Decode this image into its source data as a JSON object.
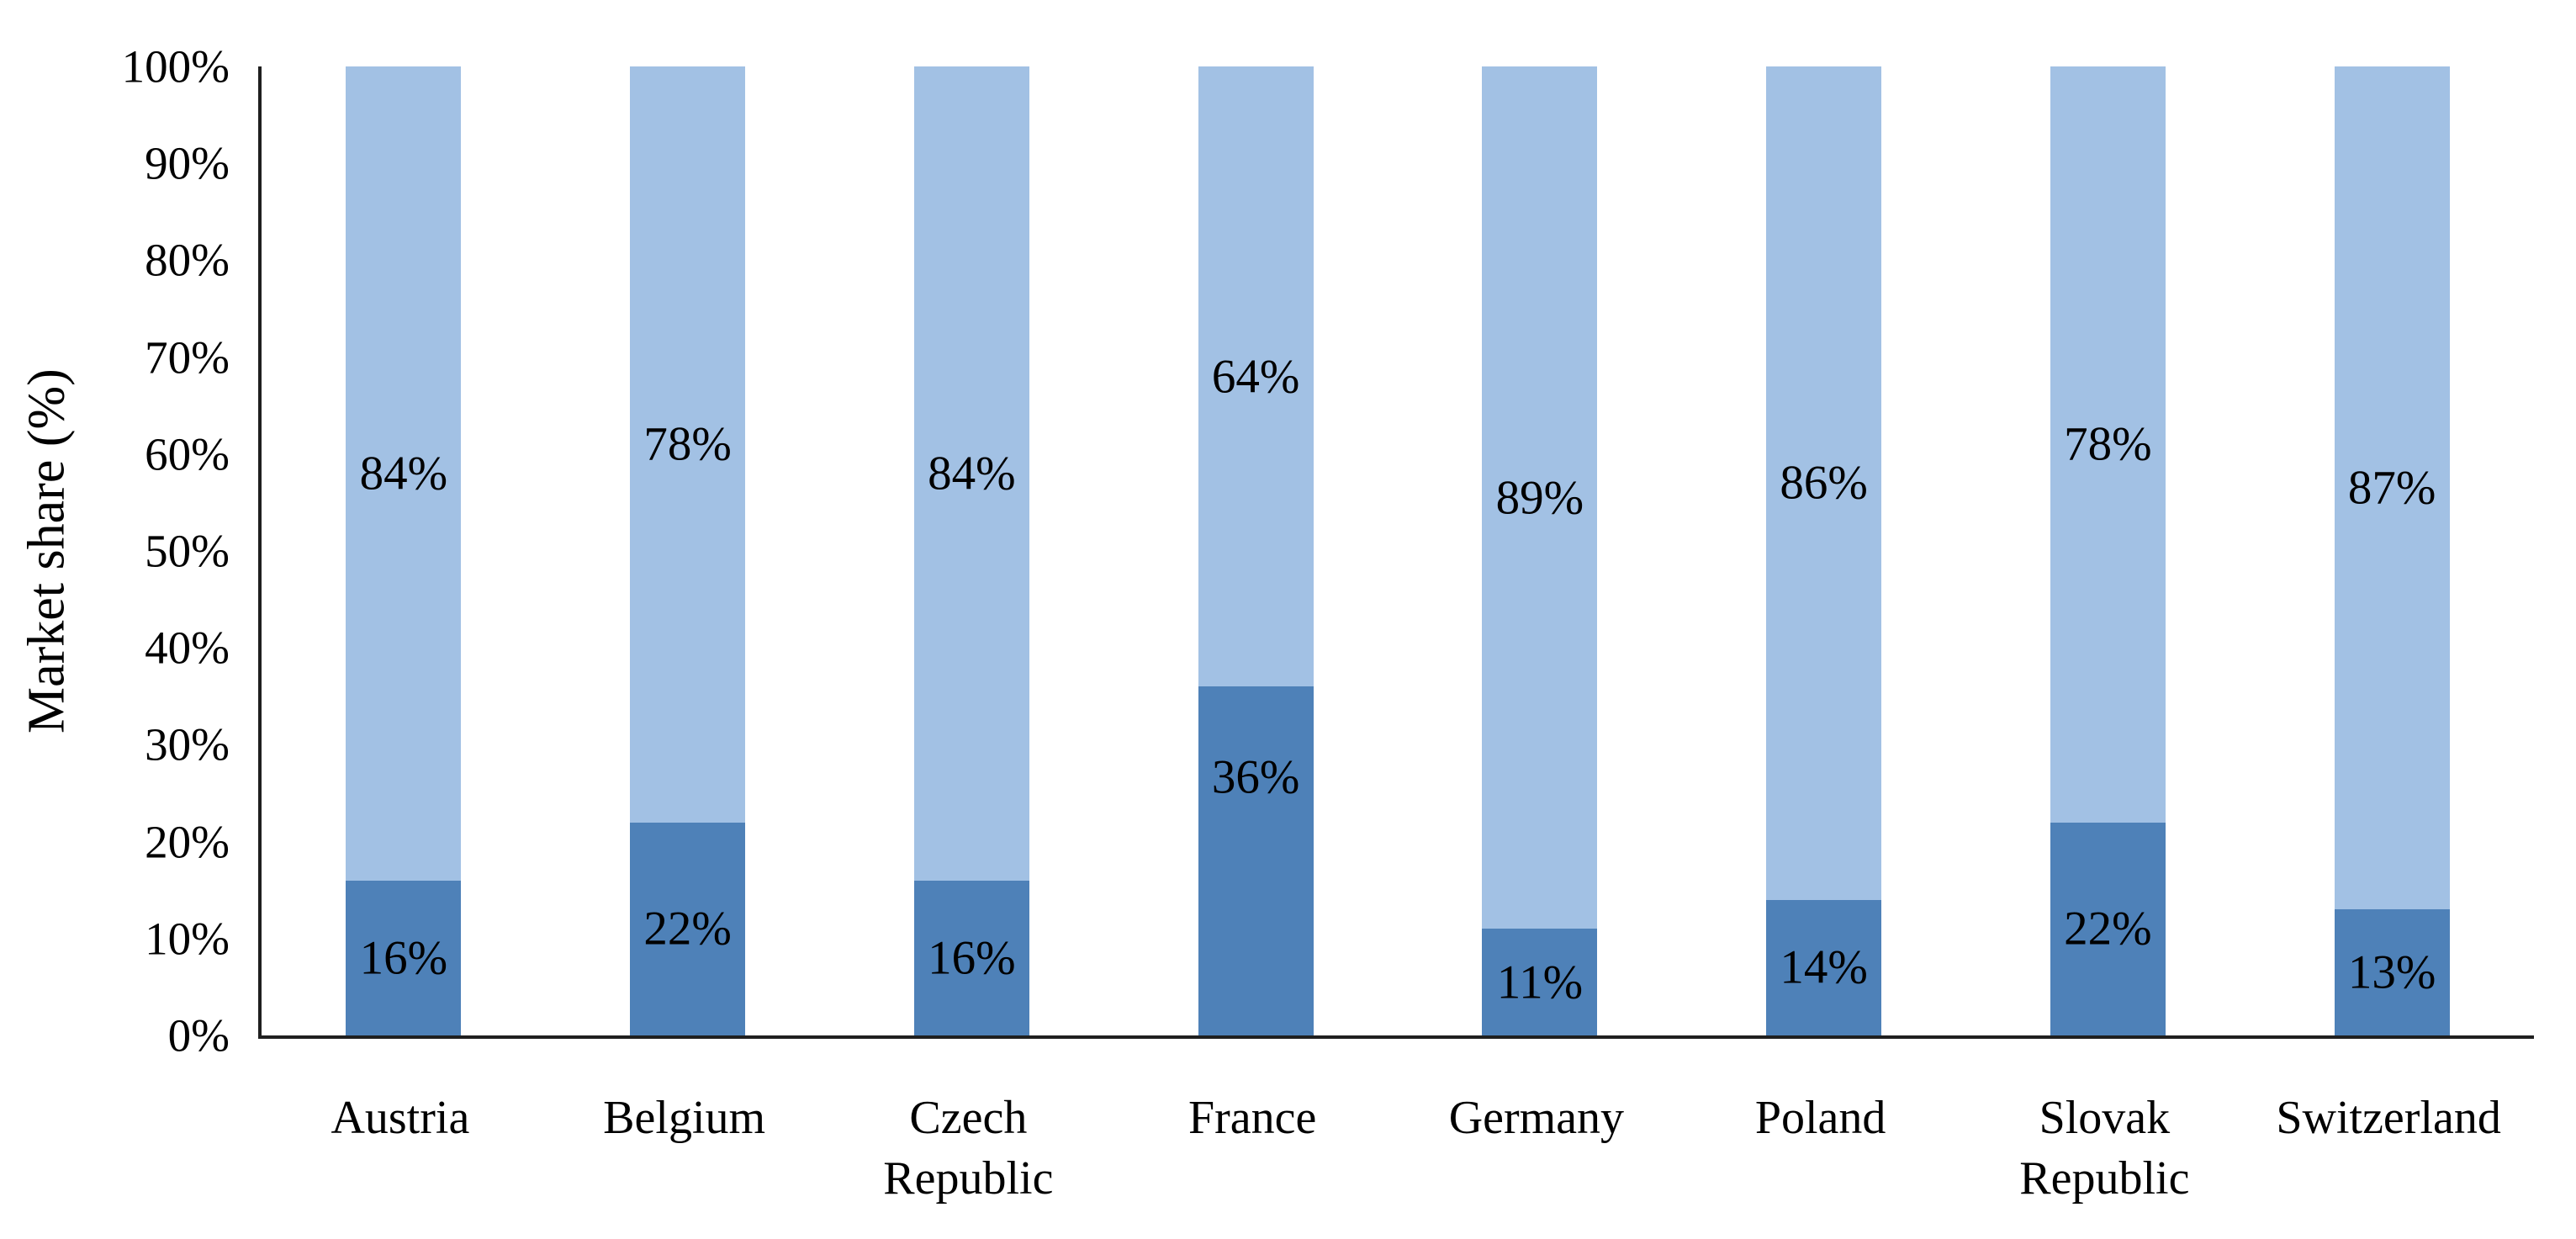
{
  "chart_data": {
    "type": "bar",
    "stacked": true,
    "title": "",
    "xlabel": "",
    "ylabel": "Market share (%)",
    "ylim": [
      0,
      100
    ],
    "ytick_step": 10,
    "ytick_labels": [
      "0%",
      "10%",
      "20%",
      "30%",
      "40%",
      "50%",
      "60%",
      "70%",
      "80%",
      "90%",
      "100%"
    ],
    "grid": false,
    "legend": "none",
    "categories": [
      "Austria",
      "Belgium",
      "Czech Republic",
      "France",
      "Germany",
      "Poland",
      "Slovak Republic",
      "Switzerland"
    ],
    "category_label_lines": [
      [
        "Austria"
      ],
      [
        "Belgium"
      ],
      [
        "Czech",
        "Republic"
      ],
      [
        "France"
      ],
      [
        "Germany"
      ],
      [
        "Poland"
      ],
      [
        "Slovak",
        "Republic"
      ],
      [
        "Switzerland"
      ]
    ],
    "series": [
      {
        "name": "dark blue (bottom segment)",
        "color": "#4e81b8",
        "values": [
          16,
          22,
          16,
          36,
          11,
          14,
          22,
          13
        ],
        "labels": [
          "16%",
          "22%",
          "16%",
          "36%",
          "11%",
          "14%",
          "22%",
          "13%"
        ]
      },
      {
        "name": "light blue (top segment)",
        "color": "#a2c1e4",
        "values": [
          84,
          78,
          84,
          64,
          89,
          86,
          78,
          87
        ],
        "labels": [
          "84%",
          "78%",
          "84%",
          "64%",
          "89%",
          "86%",
          "78%",
          "87%"
        ]
      }
    ]
  },
  "colors": {
    "axis": "#1f1f1f",
    "data_label": "#000000",
    "background": "#ffffff"
  }
}
